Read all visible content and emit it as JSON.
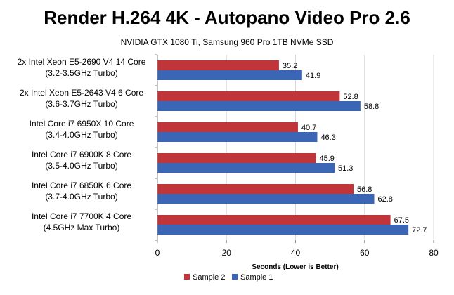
{
  "chart_data": {
    "type": "bar",
    "orientation": "horizontal",
    "title": "Render H.264 4K - Autopano Video Pro 2.6",
    "subtitle": "NVIDIA GTX 1080 Ti, Samsung 960 Pro 1TB NVMe SSD",
    "xlabel": "Seconds  (Lower is Better)",
    "ylabel": "",
    "xlim": [
      0,
      80
    ],
    "xticks": [
      0,
      20,
      40,
      60,
      80
    ],
    "grid": true,
    "legend_position": "bottom",
    "categories": [
      [
        "2x Intel Xeon E5-2690 V4 14 Core",
        "(3.2-3.5GHz Turbo)"
      ],
      [
        "2x Intel Xeon E5-2643 V4 6 Core",
        "(3.6-3.7GHz Turbo)"
      ],
      [
        "Intel Core i7 6950X 10 Core",
        "(3.4-4.0GHz Turbo)"
      ],
      [
        "Intel Core i7 6900K 8 Core",
        "(3.5-4.0GHz Turbo)"
      ],
      [
        "Intel Core i7 6850K 6 Core",
        "(3.7-4.0GHz Turbo)"
      ],
      [
        "Intel Core i7 7700K 4 Core",
        "(4.5GHz Max Turbo)"
      ]
    ],
    "series": [
      {
        "name": "Sample 2",
        "color": "#c0353a",
        "values": [
          35.2,
          52.8,
          40.7,
          45.9,
          56.8,
          67.5
        ]
      },
      {
        "name": "Sample 1",
        "color": "#3a66b5",
        "values": [
          41.9,
          58.8,
          46.3,
          51.3,
          62.8,
          72.7
        ]
      }
    ]
  }
}
